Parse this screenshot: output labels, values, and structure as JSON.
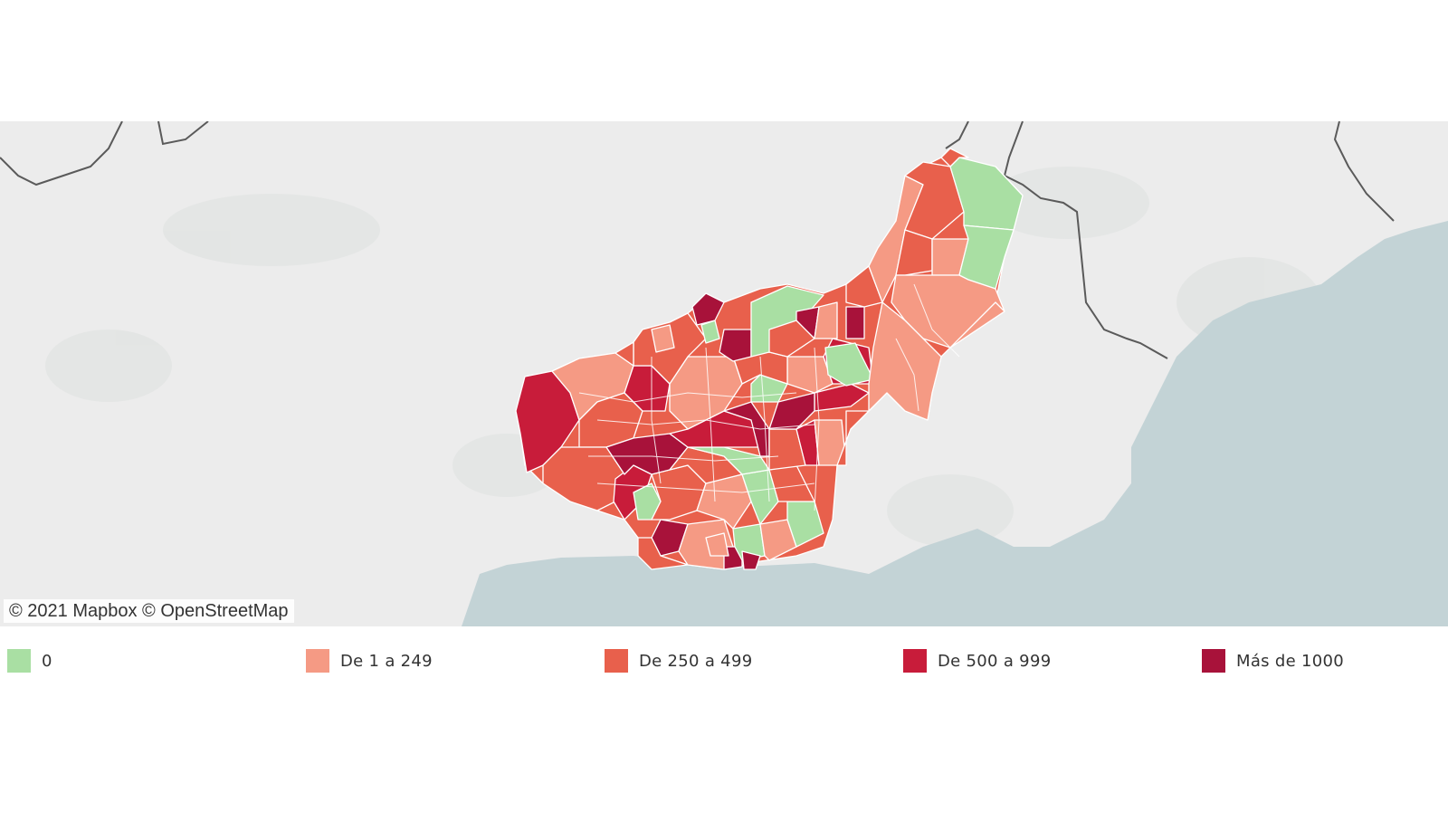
{
  "map": {
    "attribution": "© 2021 Mapbox © OpenStreetMap",
    "colors": {
      "land": "#ececec",
      "land_shade": "#e2e4e3",
      "sea": "#c3d3d6",
      "border": "#5a5a5a",
      "region_stroke": "#ffffff"
    }
  },
  "legend": {
    "items": [
      {
        "label": "0",
        "color": "#a9dfa3"
      },
      {
        "label": "De 1 a 249",
        "color": "#f59a84"
      },
      {
        "label": "De 250 a 499",
        "color": "#e8604c"
      },
      {
        "label": "De 500 a 999",
        "color": "#c81c3a"
      },
      {
        "label": "Más de 1000",
        "color": "#a8123a"
      }
    ]
  }
}
